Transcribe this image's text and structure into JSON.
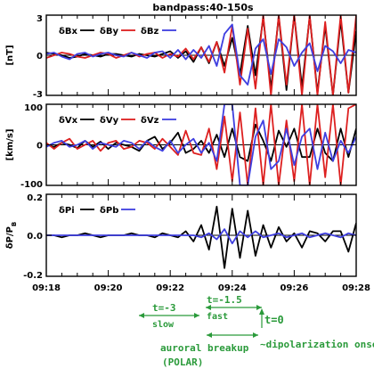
{
  "chart_data": {
    "title": "bandpass:40-150s",
    "type": "line",
    "x_ticks": [
      "09:18",
      "09:20",
      "09:22",
      "09:24",
      "09:26",
      "09:28"
    ],
    "xlim_minutes": [
      0,
      10
    ],
    "panels": [
      {
        "id": "B",
        "ylabel": "[nT]",
        "ylim": [
          -3,
          3
        ],
        "yticks": [
          "3",
          "0",
          "-3"
        ],
        "ytick_values": [
          3,
          0,
          -3
        ],
        "legend": [
          {
            "name": "δBx",
            "color": "#000000"
          },
          {
            "name": "δBy",
            "color": "#dd2020"
          },
          {
            "name": "δBz",
            "color": "#3f3fe0"
          }
        ],
        "series": [
          {
            "name": "δBx",
            "color": "#000000",
            "x": [
              0,
              0.25,
              0.5,
              0.75,
              1,
              1.25,
              1.5,
              1.75,
              2,
              2.25,
              2.5,
              2.75,
              3,
              3.25,
              3.5,
              3.75,
              4,
              4.25,
              4.5,
              4.75,
              5,
              5.25,
              5.5,
              5.75,
              6,
              6.25,
              6.5,
              6.75,
              7,
              7.25,
              7.5,
              7.75,
              8,
              8.25,
              8.5,
              8.75,
              9,
              9.25,
              9.5,
              9.75,
              10
            ],
            "values": [
              0.2,
              0.1,
              0,
              -0.2,
              -0.1,
              0.1,
              0,
              -0.1,
              0.1,
              0.1,
              0,
              -0.1,
              0.1,
              0,
              -0.1,
              0.1,
              0.3,
              -0.2,
              0.3,
              -0.5,
              0.6,
              -0.6,
              1,
              -0.8,
              1.3,
              -1.4,
              2.2,
              -1.5,
              2.8,
              -2.5,
              2.9,
              -2.6,
              3,
              -2.4,
              2.9,
              -2.8,
              2.2,
              -3,
              2.6,
              -2.8,
              1.8
            ]
          },
          {
            "name": "δBy",
            "color": "#dd2020",
            "x": [
              0,
              0.25,
              0.5,
              0.75,
              1,
              1.25,
              1.5,
              1.75,
              2,
              2.25,
              2.5,
              2.75,
              3,
              3.25,
              3.5,
              3.75,
              4,
              4.25,
              4.5,
              4.75,
              5,
              5.25,
              5.5,
              5.75,
              6,
              6.25,
              6.5,
              6.75,
              7,
              7.25,
              7.5,
              7.75,
              8,
              8.25,
              8.5,
              8.75,
              9,
              9.25,
              9.5,
              9.75,
              10
            ],
            "values": [
              -0.2,
              0,
              0.2,
              0.1,
              -0.1,
              -0.2,
              0,
              0.2,
              0.1,
              -0.2,
              0,
              0.2,
              -0.1,
              0.1,
              0.2,
              -0.2,
              0.1,
              -0.1,
              0.5,
              -0.3,
              0.6,
              -0.5,
              1,
              -1.3,
              2.2,
              -2.2,
              2,
              -2.5,
              3,
              -3,
              3,
              -2.2,
              3,
              -3,
              3,
              -3,
              2.5,
              -3,
              3,
              -2.8,
              3
            ]
          },
          {
            "name": "δBz",
            "color": "#3f3fe0",
            "x": [
              0,
              0.25,
              0.5,
              0.75,
              1,
              1.25,
              1.5,
              1.75,
              2,
              2.25,
              2.5,
              2.75,
              3,
              3.25,
              3.5,
              3.75,
              4,
              4.25,
              4.5,
              4.75,
              5,
              5.25,
              5.5,
              5.75,
              6,
              6.25,
              6.5,
              6.75,
              7,
              7.25,
              7.5,
              7.75,
              8,
              8.25,
              8.5,
              8.75,
              9,
              9.25,
              9.5,
              9.75,
              10
            ],
            "values": [
              0.1,
              0.2,
              -0.1,
              -0.3,
              0.1,
              0.2,
              -0.1,
              0.1,
              0.2,
              0,
              -0.1,
              0.2,
              0,
              -0.2,
              0.2,
              0.3,
              -0.2,
              0.4,
              -0.3,
              0.4,
              -0.2,
              0.7,
              -0.8,
              1.6,
              2.3,
              -1.5,
              -2.2,
              0.5,
              1.2,
              -1.4,
              1.2,
              0.6,
              -0.8,
              0.2,
              0.9,
              -1.2,
              0.7,
              0.3,
              -0.6,
              0.4,
              0.2
            ]
          }
        ]
      },
      {
        "id": "V",
        "ylabel": "[km/s]",
        "ylim": [
          -100,
          100
        ],
        "yticks": [
          "100",
          "0",
          "-100"
        ],
        "ytick_values": [
          100,
          0,
          -100
        ],
        "legend": [
          {
            "name": "δVx",
            "color": "#000000"
          },
          {
            "name": "δVy",
            "color": "#dd2020"
          },
          {
            "name": "δVz",
            "color": "#3f3fe0"
          }
        ],
        "series": [
          {
            "name": "δVx",
            "color": "#000000",
            "x": [
              0,
              0.25,
              0.5,
              0.75,
              1,
              1.25,
              1.5,
              1.75,
              2,
              2.25,
              2.5,
              2.75,
              3,
              3.25,
              3.5,
              3.75,
              4,
              4.25,
              4.5,
              4.75,
              5,
              5.25,
              5.5,
              5.75,
              6,
              6.25,
              6.5,
              6.75,
              7,
              7.25,
              7.5,
              7.75,
              8,
              8.25,
              8.5,
              8.75,
              9,
              9.25,
              9.5,
              9.75,
              10
            ],
            "values": [
              0,
              -5,
              5,
              0,
              -8,
              10,
              -5,
              8,
              -10,
              5,
              0,
              -5,
              -15,
              10,
              20,
              -10,
              5,
              30,
              -20,
              -10,
              10,
              -20,
              25,
              -30,
              40,
              -30,
              -40,
              50,
              10,
              -40,
              35,
              -5,
              40,
              -30,
              -30,
              40,
              -20,
              -40,
              40,
              -30,
              40
            ]
          },
          {
            "name": "δVy",
            "color": "#dd2020",
            "x": [
              0,
              0.25,
              0.5,
              0.75,
              1,
              1.25,
              1.5,
              1.75,
              2,
              2.25,
              2.5,
              2.75,
              3,
              3.25,
              3.5,
              3.75,
              4,
              4.25,
              4.5,
              4.75,
              5,
              5.25,
              5.5,
              5.75,
              6,
              6.25,
              6.5,
              6.75,
              7,
              7.25,
              7.5,
              7.75,
              8,
              8.25,
              8.5,
              8.75,
              9,
              9.25,
              9.5,
              9.75,
              10
            ],
            "values": [
              5,
              -10,
              5,
              15,
              -10,
              0,
              10,
              -15,
              5,
              10,
              -10,
              -5,
              10,
              5,
              -10,
              15,
              -5,
              -25,
              35,
              -20,
              -25,
              40,
              -60,
              70,
              -90,
              80,
              -100,
              90,
              -100,
              100,
              -100,
              60,
              -90,
              100,
              -100,
              100,
              -80,
              100,
              -100,
              90,
              100
            ]
          },
          {
            "name": "δVz",
            "color": "#3f3fe0",
            "x": [
              0,
              0.25,
              0.5,
              0.75,
              1,
              1.25,
              1.5,
              1.75,
              2,
              2.25,
              2.5,
              2.75,
              3,
              3.25,
              3.5,
              3.75,
              4,
              4.25,
              4.5,
              4.75,
              5,
              5.25,
              5.5,
              5.75,
              6,
              6.25,
              6.5,
              6.75,
              7,
              7.25,
              7.5,
              7.75,
              8,
              8.25,
              8.5,
              8.75,
              9,
              9.25,
              9.5,
              9.75,
              10
            ],
            "values": [
              -5,
              5,
              10,
              -5,
              0,
              10,
              -10,
              5,
              0,
              -5,
              10,
              5,
              -10,
              10,
              -5,
              -15,
              10,
              -20,
              0,
              15,
              -20,
              5,
              -40,
              100,
              100,
              -100,
              -100,
              20,
              60,
              -60,
              -40,
              40,
              -50,
              20,
              40,
              -60,
              30,
              -40,
              10,
              -20,
              20
            ]
          }
        ]
      },
      {
        "id": "P",
        "ylabel": "δP/P",
        "ylabel_sub": "B",
        "ylim": [
          -0.2,
          0.2
        ],
        "yticks": [
          "0.2",
          "0.0",
          "-0.2"
        ],
        "ytick_values": [
          0.2,
          0,
          -0.2
        ],
        "legend": [
          {
            "name": "δPi",
            "color": "#000000"
          },
          {
            "name": "δPb",
            "color": "#3f3fe0"
          }
        ],
        "series": [
          {
            "name": "δPi",
            "color": "#000000",
            "x": [
              0,
              0.25,
              0.5,
              0.75,
              1,
              1.25,
              1.5,
              1.75,
              2,
              2.25,
              2.5,
              2.75,
              3,
              3.25,
              3.5,
              3.75,
              4,
              4.25,
              4.5,
              4.75,
              5,
              5.25,
              5.5,
              5.75,
              6,
              6.25,
              6.5,
              6.75,
              7,
              7.25,
              7.5,
              7.75,
              8,
              8.25,
              8.5,
              8.75,
              9,
              9.25,
              9.5,
              9.75,
              10
            ],
            "values": [
              0,
              0,
              -0.01,
              0,
              0,
              0.01,
              0,
              -0.01,
              0,
              0,
              0,
              0.01,
              0,
              0,
              -0.01,
              0.01,
              0,
              -0.01,
              0.02,
              -0.03,
              0.05,
              -0.07,
              0.14,
              -0.16,
              0.13,
              -0.11,
              0.12,
              -0.1,
              0.05,
              -0.06,
              0.04,
              -0.03,
              0.01,
              -0.06,
              0.02,
              0.01,
              -0.03,
              0.02,
              0.02,
              -0.08,
              0.06
            ]
          },
          {
            "name": "δPb",
            "color": "#3f3fe0",
            "x": [
              0,
              0.25,
              0.5,
              0.75,
              1,
              1.25,
              1.5,
              1.75,
              2,
              2.25,
              2.5,
              2.75,
              3,
              3.25,
              3.5,
              3.75,
              4,
              4.25,
              4.5,
              4.75,
              5,
              5.25,
              5.5,
              5.75,
              6,
              6.25,
              6.5,
              6.75,
              7,
              7.25,
              7.5,
              7.75,
              8,
              8.25,
              8.5,
              8.75,
              9,
              9.25,
              9.5,
              9.75,
              10
            ],
            "values": [
              0,
              0,
              0,
              0,
              0,
              0,
              0,
              0,
              0,
              0,
              0,
              0,
              0,
              0,
              0,
              0,
              0,
              0,
              0,
              0,
              -0.01,
              0.01,
              -0.02,
              0.03,
              -0.04,
              0.02,
              -0.01,
              0.02,
              -0.01,
              0,
              0.01,
              -0.01,
              0,
              0.01,
              -0.01,
              0,
              0.01,
              0,
              -0.01,
              0.01,
              0
            ]
          }
        ]
      }
    ]
  },
  "annotations": {
    "slow_label": "t=-3",
    "slow_sub": "slow",
    "fast_label": "t=-1.5",
    "fast_sub": "fast",
    "onset_label": "t=0",
    "breakup_label": "auroral breakup",
    "breakup_sub": "(POLAR)",
    "dipol_label": "~dipolarization onset",
    "color": "#2a9a3a"
  }
}
